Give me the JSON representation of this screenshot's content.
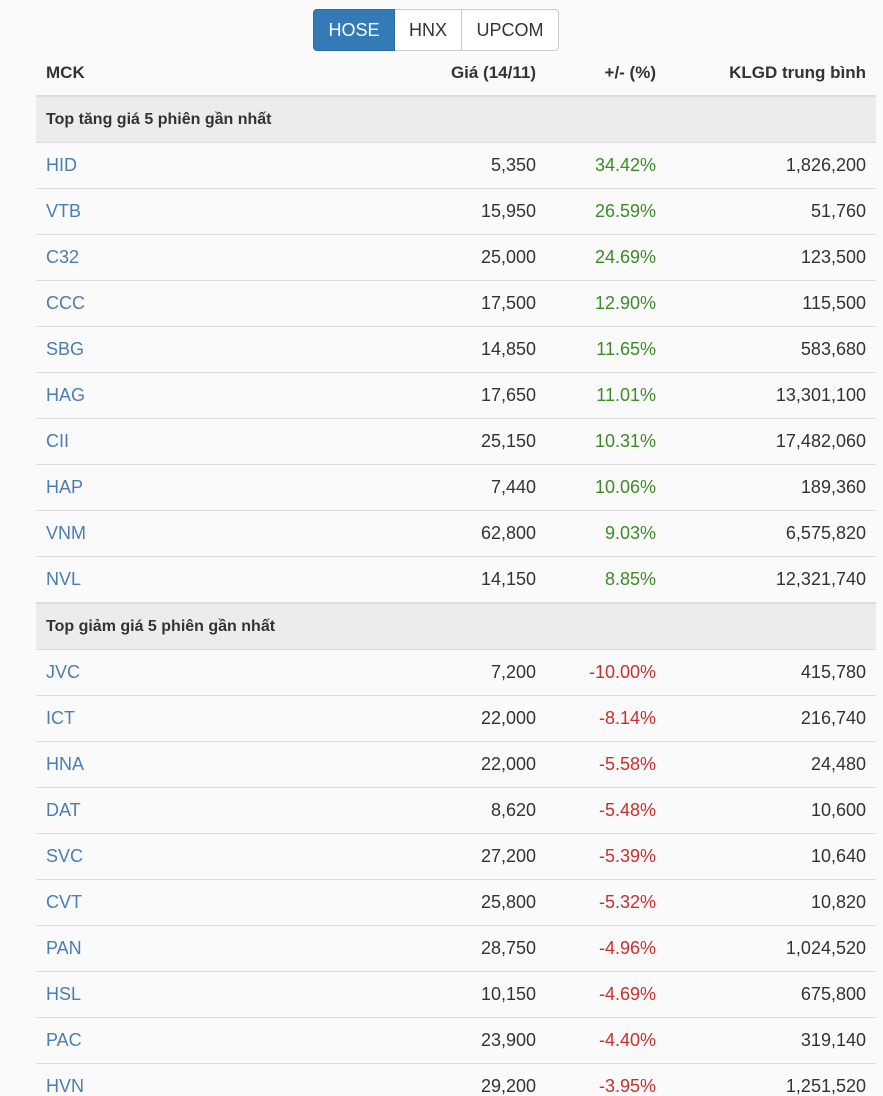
{
  "tabs": [
    {
      "label": "HOSE",
      "active": true
    },
    {
      "label": "HNX",
      "active": false
    },
    {
      "label": "UPCOM",
      "active": false
    }
  ],
  "table": {
    "headers": {
      "symbol": "MCK",
      "price": "Giá (14/11)",
      "change": "+/- (%)",
      "volume": "KLGD trung bình"
    },
    "gainers": {
      "title": "Top tăng giá 5 phiên gần nhất",
      "rows": [
        {
          "symbol": "HID",
          "price": "5,350",
          "change": "34.42%",
          "volume": "1,826,200"
        },
        {
          "symbol": "VTB",
          "price": "15,950",
          "change": "26.59%",
          "volume": "51,760"
        },
        {
          "symbol": "C32",
          "price": "25,000",
          "change": "24.69%",
          "volume": "123,500"
        },
        {
          "symbol": "CCC",
          "price": "17,500",
          "change": "12.90%",
          "volume": "115,500"
        },
        {
          "symbol": "SBG",
          "price": "14,850",
          "change": "11.65%",
          "volume": "583,680"
        },
        {
          "symbol": "HAG",
          "price": "17,650",
          "change": "11.01%",
          "volume": "13,301,100"
        },
        {
          "symbol": "CII",
          "price": "25,150",
          "change": "10.31%",
          "volume": "17,482,060"
        },
        {
          "symbol": "HAP",
          "price": "7,440",
          "change": "10.06%",
          "volume": "189,360"
        },
        {
          "symbol": "VNM",
          "price": "62,800",
          "change": "9.03%",
          "volume": "6,575,820"
        },
        {
          "symbol": "NVL",
          "price": "14,150",
          "change": "8.85%",
          "volume": "12,321,740"
        }
      ]
    },
    "losers": {
      "title": "Top giảm giá 5 phiên gần nhất",
      "rows": [
        {
          "symbol": "JVC",
          "price": "7,200",
          "change": "-10.00%",
          "volume": "415,780"
        },
        {
          "symbol": "ICT",
          "price": "22,000",
          "change": "-8.14%",
          "volume": "216,740"
        },
        {
          "symbol": "HNA",
          "price": "22,000",
          "change": "-5.58%",
          "volume": "24,480"
        },
        {
          "symbol": "DAT",
          "price": "8,620",
          "change": "-5.48%",
          "volume": "10,600"
        },
        {
          "symbol": "SVC",
          "price": "27,200",
          "change": "-5.39%",
          "volume": "10,640"
        },
        {
          "symbol": "CVT",
          "price": "25,800",
          "change": "-5.32%",
          "volume": "10,820"
        },
        {
          "symbol": "PAN",
          "price": "28,750",
          "change": "-4.96%",
          "volume": "1,024,520"
        },
        {
          "symbol": "HSL",
          "price": "10,150",
          "change": "-4.69%",
          "volume": "675,800"
        },
        {
          "symbol": "PAC",
          "price": "23,900",
          "change": "-4.40%",
          "volume": "319,140"
        },
        {
          "symbol": "HVN",
          "price": "29,200",
          "change": "-3.95%",
          "volume": "1,251,520"
        }
      ]
    }
  },
  "colors": {
    "accent": "#337ab7",
    "link": "#4a7db3",
    "up": "#3d8b27",
    "down": "#c9302c",
    "section_bg": "#ececec"
  }
}
